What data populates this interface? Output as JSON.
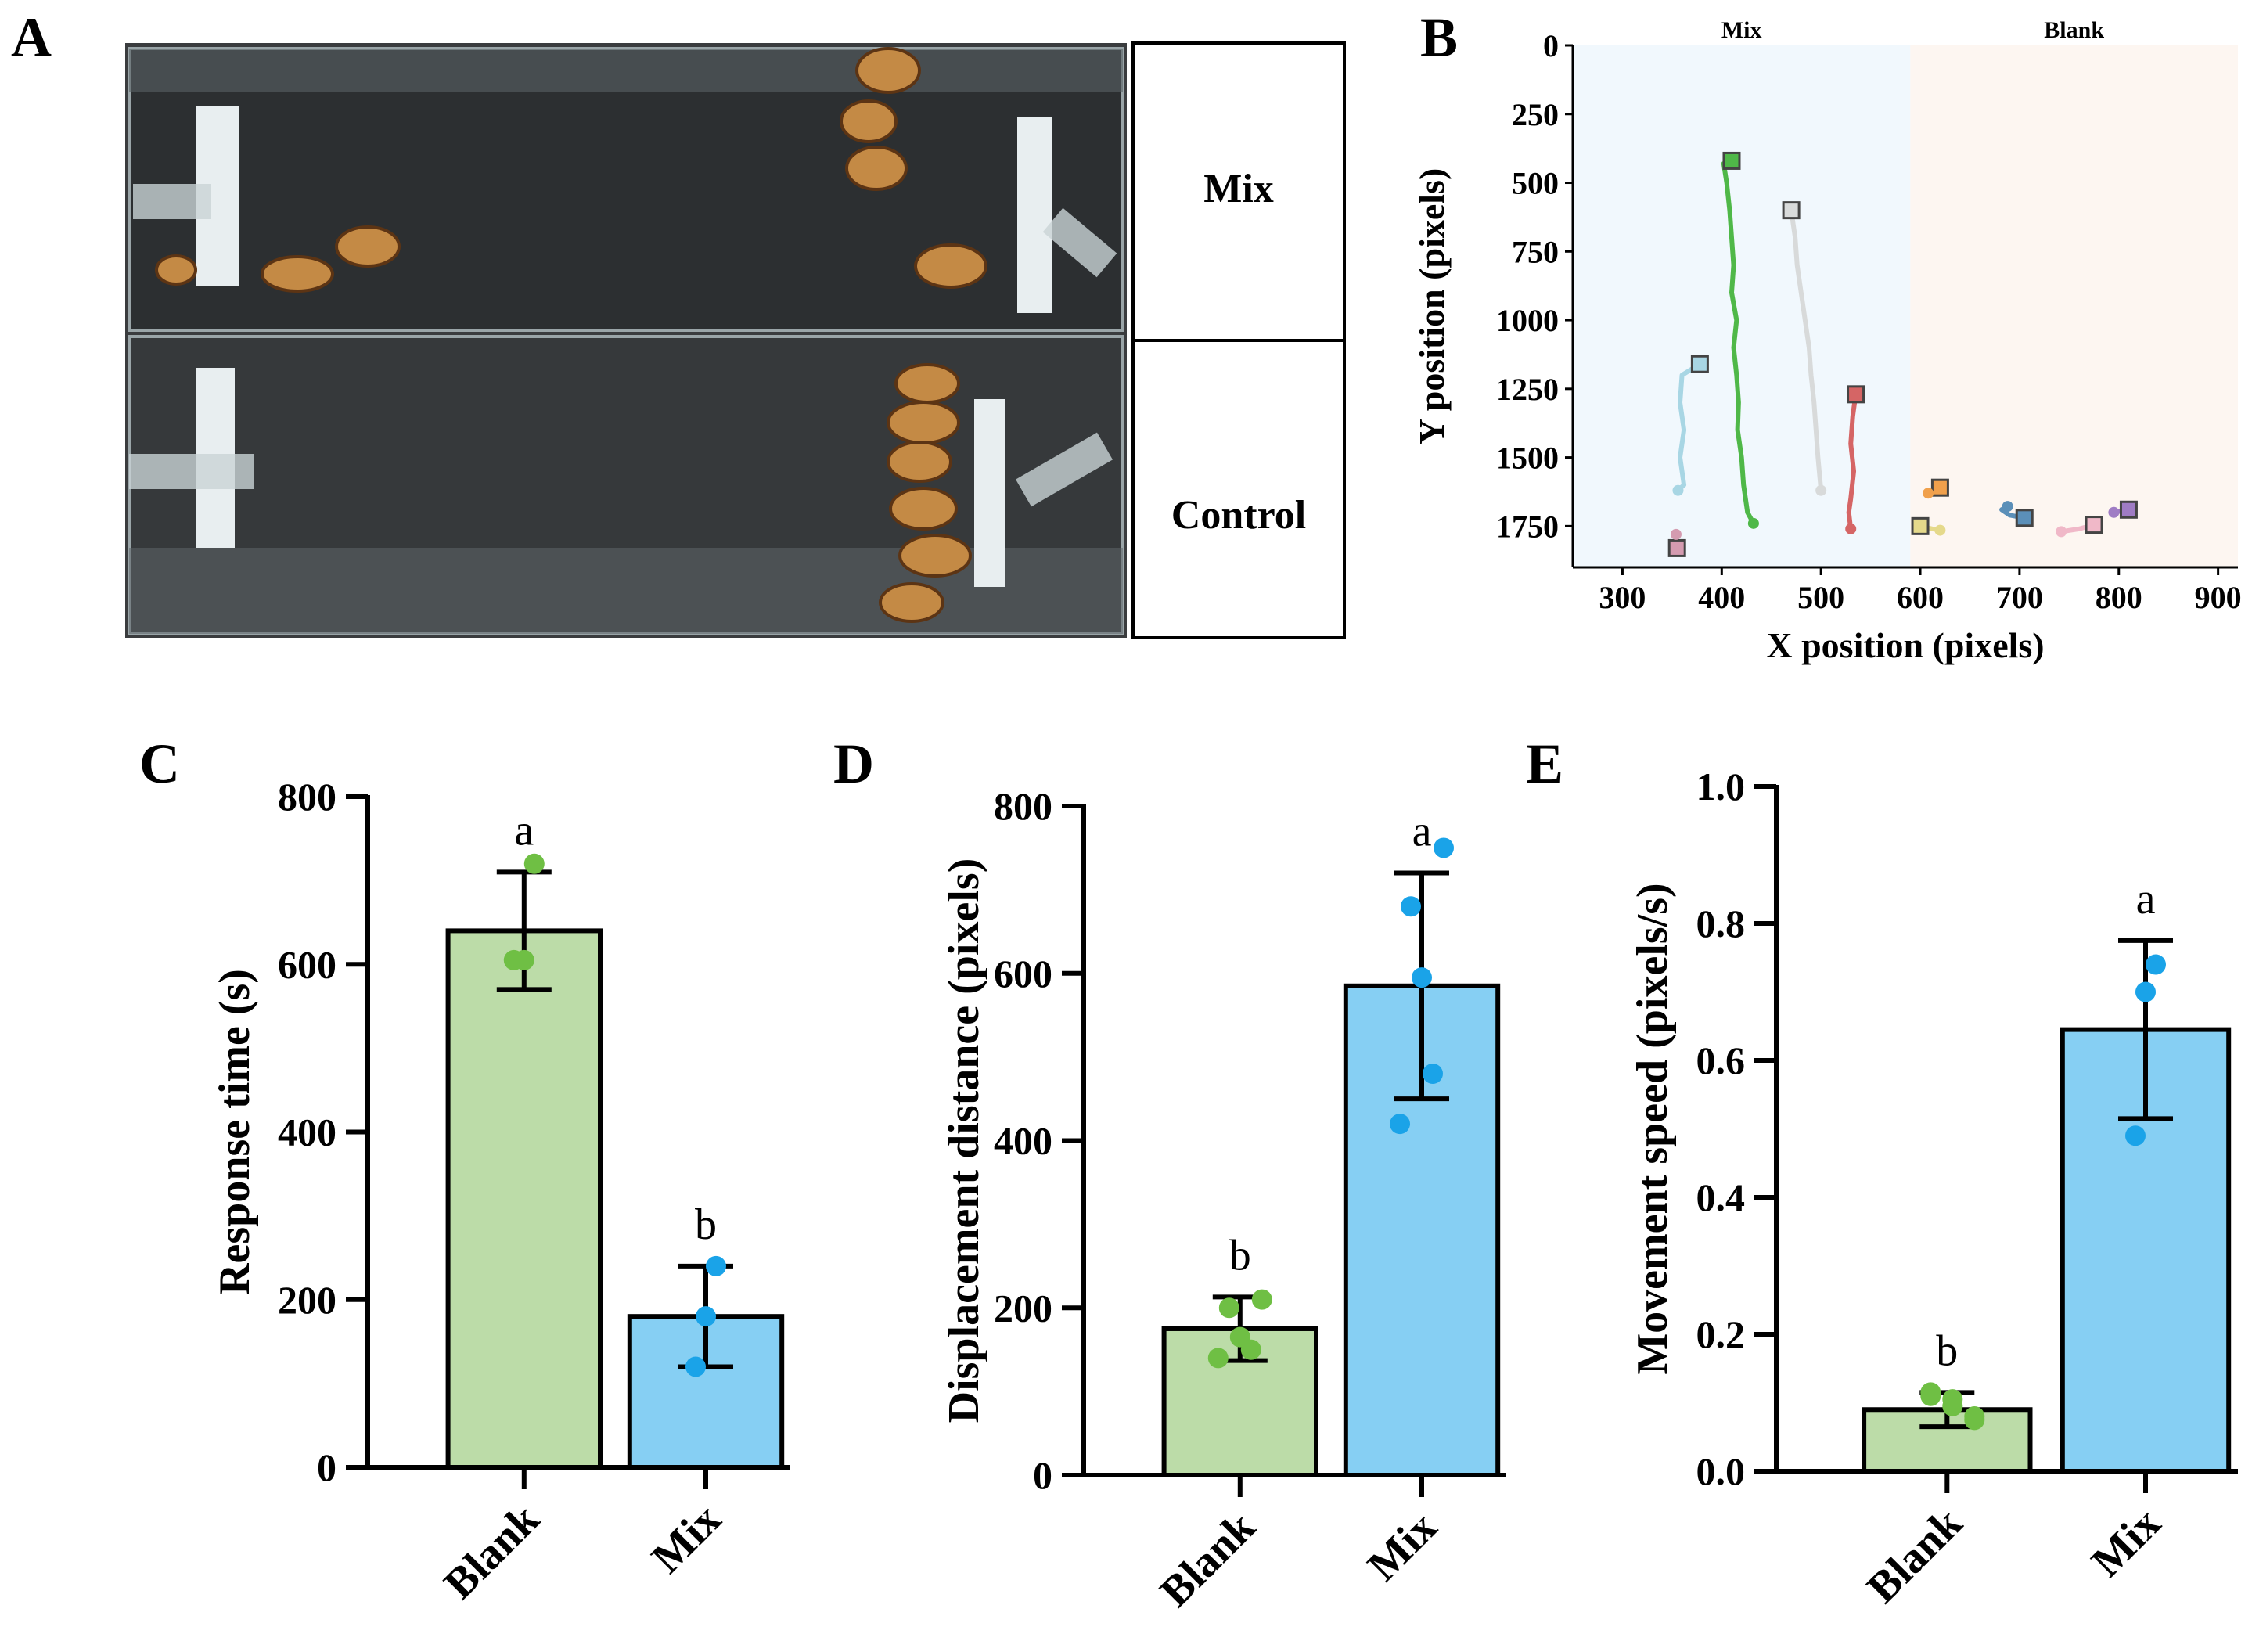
{
  "panels": {
    "A": {
      "label": "A",
      "rows": [
        "Mix",
        "Control"
      ]
    },
    "B": {
      "label": "B"
    },
    "C": {
      "label": "C"
    },
    "D": {
      "label": "D"
    },
    "E": {
      "label": "E"
    }
  },
  "colors": {
    "blank": "#bcdca8",
    "mix": "#86cff3",
    "blank_dot": "#6fbf44",
    "mix_dot": "#1aa3e8"
  },
  "chart_data": [
    {
      "id": "B",
      "type": "line",
      "title": "",
      "xlabel": "X position (pixels)",
      "ylabel": "Y position (pixels)",
      "xlim": [
        250,
        920
      ],
      "ylim": [
        1900,
        0
      ],
      "xticks": [
        "300",
        "400",
        "500",
        "600",
        "700",
        "800",
        "900"
      ],
      "yticks": [
        "0",
        "250",
        "500",
        "750",
        "1000",
        "1250",
        "1500",
        "1750"
      ],
      "regions": [
        {
          "name": "Mix",
          "x_range": [
            250,
            590
          ],
          "color": "#f1f8fd"
        },
        {
          "name": "Blank",
          "x_range": [
            590,
            920
          ],
          "color": "#fdf6f1"
        }
      ],
      "series": [
        {
          "name": "track-1",
          "color": "#a8d6e4",
          "points": [
            [
              378,
              1160
            ],
            [
              360,
              1200
            ],
            [
              358,
              1300
            ],
            [
              362,
              1400
            ],
            [
              358,
              1500
            ],
            [
              362,
              1600
            ],
            [
              356,
              1620
            ]
          ]
        },
        {
          "name": "track-2",
          "color": "#4fb848",
          "points": [
            [
              410,
              420
            ],
            [
              402,
              430
            ],
            [
              405,
              500
            ],
            [
              408,
              600
            ],
            [
              410,
              700
            ],
            [
              412,
              800
            ],
            [
              410,
              900
            ],
            [
              415,
              1000
            ],
            [
              412,
              1100
            ],
            [
              415,
              1200
            ],
            [
              417,
              1300
            ],
            [
              416,
              1400
            ],
            [
              420,
              1500
            ],
            [
              422,
              1600
            ],
            [
              426,
              1700
            ],
            [
              432,
              1740
            ]
          ]
        },
        {
          "name": "track-3",
          "color": "#d8dada",
          "points": [
            [
              470,
              600
            ],
            [
              474,
              700
            ],
            [
              476,
              800
            ],
            [
              480,
              900
            ],
            [
              484,
              1000
            ],
            [
              488,
              1100
            ],
            [
              490,
              1200
            ],
            [
              493,
              1300
            ],
            [
              495,
              1400
            ],
            [
              497,
              1500
            ],
            [
              500,
              1620
            ]
          ]
        },
        {
          "name": "track-4",
          "color": "#d56565",
          "points": [
            [
              535,
              1270
            ],
            [
              532,
              1350
            ],
            [
              530,
              1450
            ],
            [
              533,
              1550
            ],
            [
              530,
              1650
            ],
            [
              528,
              1700
            ],
            [
              530,
              1760
            ]
          ]
        },
        {
          "name": "track-5",
          "color": "#f0a04c",
          "points": [
            [
              620,
              1610
            ],
            [
              608,
              1630
            ]
          ]
        },
        {
          "name": "track-6",
          "color": "#e5d98b",
          "points": [
            [
              600,
              1750
            ],
            [
              612,
              1760
            ],
            [
              620,
              1765
            ]
          ]
        },
        {
          "name": "track-7",
          "color": "#5b8fb8",
          "points": [
            [
              705,
              1720
            ],
            [
              690,
              1710
            ],
            [
              682,
              1690
            ],
            [
              688,
              1678
            ]
          ]
        },
        {
          "name": "track-8",
          "color": "#f0b8c8",
          "points": [
            [
              775,
              1745
            ],
            [
              760,
              1760
            ],
            [
              742,
              1770
            ]
          ]
        },
        {
          "name": "track-9",
          "color": "#9f7cc4",
          "points": [
            [
              810,
              1690
            ],
            [
              795,
              1700
            ]
          ]
        },
        {
          "name": "track-10",
          "color": "#d49bb0",
          "points": [
            [
              355,
              1830
            ],
            [
              354,
              1780
            ]
          ]
        }
      ]
    },
    {
      "id": "C",
      "type": "bar",
      "ylabel": "Response time (s)",
      "categories": [
        "Blank",
        "Mix"
      ],
      "ylim": [
        0,
        800
      ],
      "yticks": [
        "0",
        "200",
        "400",
        "600",
        "800"
      ],
      "values": [
        640,
        180
      ],
      "errors": [
        70,
        60
      ],
      "letters": [
        "a",
        "b"
      ],
      "points": [
        [
          720,
          605,
          605
        ],
        [
          240,
          180,
          120
        ]
      ]
    },
    {
      "id": "D",
      "type": "bar",
      "ylabel": "Displacement distance (pixels)",
      "categories": [
        "Blank",
        "Mix"
      ],
      "ylim": [
        0,
        800
      ],
      "yticks": [
        "0",
        "200",
        "400",
        "600",
        "800"
      ],
      "values": [
        175,
        585
      ],
      "errors": [
        38,
        135
      ],
      "letters": [
        "b",
        "a"
      ],
      "points": [
        [
          210,
          200,
          165,
          150,
          140
        ],
        [
          750,
          680,
          595,
          480,
          420
        ]
      ]
    },
    {
      "id": "E",
      "type": "bar",
      "ylabel": "Movement speed (pixels/s)",
      "categories": [
        "Blank",
        "Mix"
      ],
      "ylim": [
        0,
        1.0
      ],
      "yticks": [
        "0.0",
        "0.2",
        "0.4",
        "0.6",
        "0.8",
        "1.0"
      ],
      "values": [
        0.09,
        0.645
      ],
      "errors": [
        0.025,
        0.13
      ],
      "letters": [
        "b",
        "a"
      ],
      "points": [
        [
          0.075,
          0.115,
          0.105,
          0.095,
          0.11,
          0.08
        ],
        [
          0.74,
          0.7,
          0.49
        ]
      ]
    }
  ]
}
